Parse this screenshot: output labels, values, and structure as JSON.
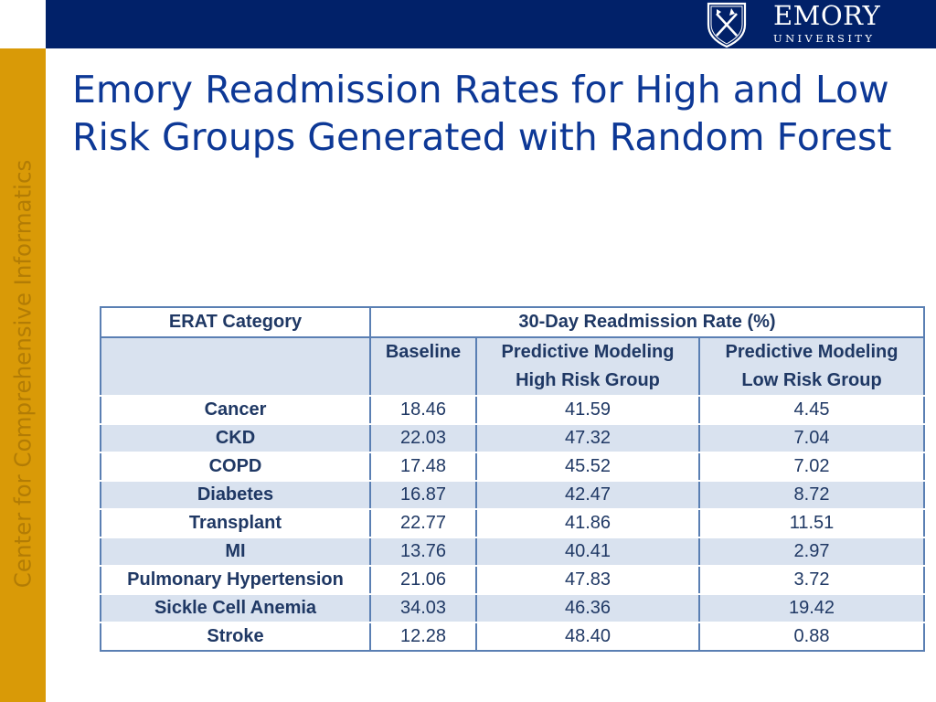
{
  "sidebar": {
    "text": "Center for Comprehensive Informatics"
  },
  "logo": {
    "word": "EMORY",
    "sub": "UNIVERSITY"
  },
  "title": "Emory Readmission Rates for High and Low Risk Groups Generated with Random Forest",
  "table": {
    "header_category": "ERAT Category",
    "header_rate": "30-Day Readmission Rate (%)",
    "columns": [
      {
        "line1": "Baseline",
        "line2": ""
      },
      {
        "line1": "Predictive Modeling",
        "line2": "High Risk Group"
      },
      {
        "line1": "Predictive Modeling",
        "line2": "Low Risk Group"
      }
    ],
    "rows": [
      {
        "category": "Cancer",
        "baseline": "18.46",
        "high": "41.59",
        "low": "4.45"
      },
      {
        "category": "CKD",
        "baseline": "22.03",
        "high": "47.32",
        "low": "7.04"
      },
      {
        "category": "COPD",
        "baseline": "17.48",
        "high": "45.52",
        "low": "7.02"
      },
      {
        "category": "Diabetes",
        "baseline": "16.87",
        "high": "42.47",
        "low": "8.72"
      },
      {
        "category": "Transplant",
        "baseline": "22.77",
        "high": "41.86",
        "low": "11.51"
      },
      {
        "category": "MI",
        "baseline": "13.76",
        "high": "40.41",
        "low": "2.97"
      },
      {
        "category": "Pulmonary Hypertension",
        "baseline": "21.06",
        "high": "47.83",
        "low": "3.72"
      },
      {
        "category": "Sickle Cell Anemia",
        "baseline": "34.03",
        "high": "46.36",
        "low": "19.42"
      },
      {
        "category": "Stroke",
        "baseline": "12.28",
        "high": "48.40",
        "low": "0.88"
      }
    ]
  },
  "colors": {
    "navy": "#012169",
    "gold": "#d99a07",
    "title_blue": "#0d3896",
    "row_shade": "#d9e2ef"
  }
}
